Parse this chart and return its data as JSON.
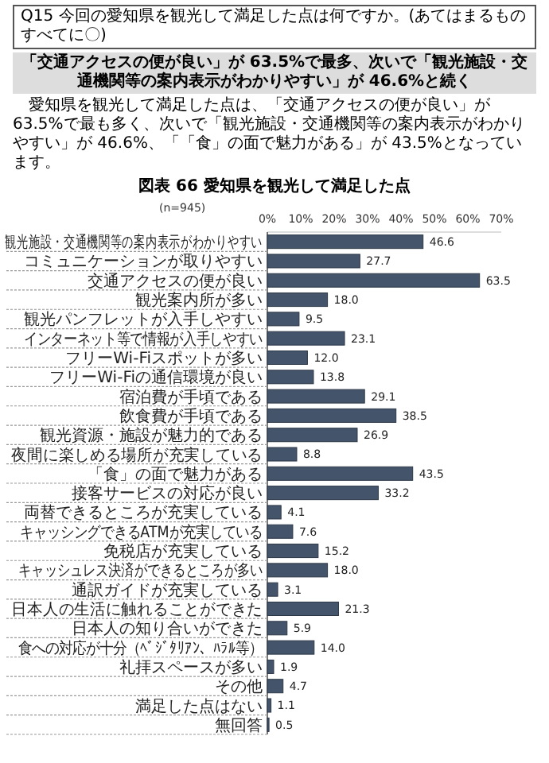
{
  "chart_data": {
    "type": "bar",
    "orientation": "horizontal",
    "title": "図表 66 愛知県を観光して満足した点",
    "annotations": [
      "Q15 今回の愛知県を観光して満足した点は何ですか。(あてはまるものすべてに〇)",
      "「交通アクセスの便が良い」が 63.5%で最多、次いで「観光施設・交通機関等の案内表示がわかりやすい」が 46.6%と続く",
      "愛知県を観光して満足した点は、「交通アクセスの便が良い」が 63.5%で最も多く、次いで「観光施設・交通機関等の案内表示がわかりやすい」が 46.6%、「「食」の面で魅力がある」が 43.5%となっています。",
      "(n=945)"
    ],
    "categories": [
      "観光施設・交通機関等の案内表示がわかりやすい",
      "コミュニケーションが取りやすい",
      "交通アクセスの便が良い",
      "観光案内所が多い",
      "観光パンフレットが入手しやすい",
      "インターネット等で情報が入手しやすい",
      "フリーWi-Fiスポットが多い",
      "フリーWi-Fiの通信環境が良い",
      "宿泊費が手頃である",
      "飲食費が手頃である",
      "観光資源・施設が魅力的である",
      "夜間に楽しめる場所が充実している",
      "「食」の面で魅力がある",
      "接客サービスの対応が良い",
      "両替できるところが充実している",
      "キャッシングできるATMが充実している",
      "免税店が充実している",
      "キャッシュレス決済ができるところが多い",
      "通訳ガイドが充実している",
      "日本人の生活に触れることができた",
      "日本人の知り合いができた",
      "食への対応が十分（ﾍﾞｼﾞﾀﾘｱﾝ、ﾊﾗﾙ等）",
      "礼拝スペースが多い",
      "その他",
      "満足した点はない",
      "無回答"
    ],
    "values": [
      46.6,
      27.7,
      63.5,
      18.0,
      9.5,
      23.1,
      12.0,
      13.8,
      29.1,
      38.5,
      26.9,
      8.8,
      43.5,
      33.2,
      4.1,
      7.6,
      15.2,
      18.0,
      3.1,
      21.3,
      5.9,
      14.0,
      1.9,
      4.7,
      1.1,
      0.5
    ],
    "value_labels": [
      "46.6",
      "27.7",
      "63.5",
      "18.0",
      "9.5",
      "23.1",
      "12.0",
      "13.8",
      "29.1",
      "38.5",
      "26.9",
      "8.8",
      "43.5",
      "33.2",
      "4.1",
      "7.6",
      "15.2",
      "18.0",
      "3.1",
      "21.3",
      "5.9",
      "14.0",
      "1.9",
      "4.7",
      "1.1",
      "0.5"
    ],
    "color": "#44546a",
    "xlim": [
      0,
      70
    ],
    "xticks": [
      {
        "value": 0,
        "label": "0%"
      },
      {
        "value": 10,
        "label": "10%"
      },
      {
        "value": 20,
        "label": "20%"
      },
      {
        "value": 30,
        "label": "30%"
      },
      {
        "value": 40,
        "label": "40%"
      },
      {
        "value": 50,
        "label": "50%"
      },
      {
        "value": 60,
        "label": "60%"
      },
      {
        "value": 70,
        "label": "70%"
      }
    ],
    "grid": false
  }
}
